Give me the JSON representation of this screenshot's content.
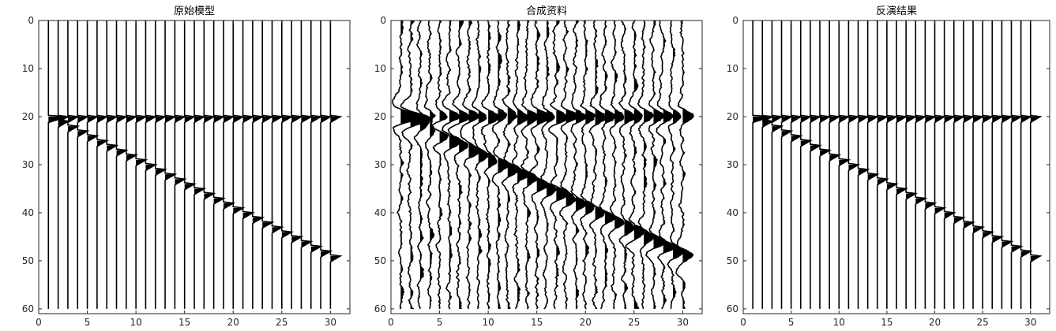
{
  "chart_data": [
    {
      "type": "seismic-wiggle",
      "title": "原始模型",
      "xlim": [
        0,
        32
      ],
      "ylim": [
        0,
        61
      ],
      "xticks": [
        0,
        5,
        10,
        15,
        20,
        25,
        30
      ],
      "yticks": [
        0,
        10,
        20,
        30,
        40,
        50,
        60
      ],
      "trace_positions": [
        1,
        2,
        3,
        4,
        5,
        6,
        7,
        8,
        9,
        10,
        11,
        12,
        13,
        14,
        15,
        16,
        17,
        18,
        19,
        20,
        21,
        22,
        23,
        24,
        25,
        26,
        27,
        28,
        29,
        30
      ],
      "events": [
        {
          "name": "flat",
          "times": [
            20,
            20,
            20,
            20,
            20,
            20,
            20,
            20,
            20,
            20,
            20,
            20,
            20,
            20,
            20,
            20,
            20,
            20,
            20,
            20,
            20,
            20,
            20,
            20,
            20,
            20,
            20,
            20,
            20,
            20
          ]
        },
        {
          "name": "dipping",
          "times": [
            20,
            21,
            22,
            23,
            24,
            25,
            26,
            27,
            28,
            29,
            30,
            31,
            32,
            33,
            34,
            35,
            36,
            37,
            38,
            39,
            40,
            41,
            42,
            43,
            44,
            45,
            46,
            47,
            48,
            49
          ]
        }
      ],
      "noise": 0
    },
    {
      "type": "seismic-wiggle",
      "title": "合成资料",
      "xlim": [
        0,
        32
      ],
      "ylim": [
        0,
        61
      ],
      "xticks": [
        0,
        5,
        10,
        15,
        20,
        25,
        30
      ],
      "yticks": [
        0,
        10,
        20,
        30,
        40,
        50,
        60
      ],
      "trace_positions": [
        1,
        2,
        3,
        4,
        5,
        6,
        7,
        8,
        9,
        10,
        11,
        12,
        13,
        14,
        15,
        16,
        17,
        18,
        19,
        20,
        21,
        22,
        23,
        24,
        25,
        26,
        27,
        28,
        29,
        30
      ],
      "events": [
        {
          "name": "flat",
          "times": [
            20,
            20,
            20,
            20,
            20,
            20,
            20,
            20,
            20,
            20,
            20,
            20,
            20,
            20,
            20,
            20,
            20,
            20,
            20,
            20,
            20,
            20,
            20,
            20,
            20,
            20,
            20,
            20,
            20,
            20
          ]
        },
        {
          "name": "dipping",
          "times": [
            20,
            21,
            22,
            23,
            24,
            25,
            26,
            27,
            28,
            29,
            30,
            31,
            32,
            33,
            34,
            35,
            36,
            37,
            38,
            39,
            40,
            41,
            42,
            43,
            44,
            45,
            46,
            47,
            48,
            49
          ]
        }
      ],
      "noise": 1
    },
    {
      "type": "seismic-wiggle",
      "title": "反演结果",
      "xlim": [
        0,
        32
      ],
      "ylim": [
        0,
        61
      ],
      "xticks": [
        0,
        5,
        10,
        15,
        20,
        25,
        30
      ],
      "yticks": [
        0,
        10,
        20,
        30,
        40,
        50,
        60
      ],
      "trace_positions": [
        1,
        2,
        3,
        4,
        5,
        6,
        7,
        8,
        9,
        10,
        11,
        12,
        13,
        14,
        15,
        16,
        17,
        18,
        19,
        20,
        21,
        22,
        23,
        24,
        25,
        26,
        27,
        28,
        29,
        30
      ],
      "events": [
        {
          "name": "flat",
          "times": [
            20,
            20,
            20,
            20,
            20,
            20,
            20,
            20,
            20,
            20,
            20,
            20,
            20,
            20,
            20,
            20,
            20,
            20,
            20,
            20,
            20,
            20,
            20,
            20,
            20,
            20,
            20,
            20,
            20,
            20
          ]
        },
        {
          "name": "dipping",
          "times": [
            20,
            21,
            22,
            23,
            24,
            25,
            26,
            27,
            28,
            29,
            30,
            31,
            32,
            33,
            34,
            35,
            36,
            37,
            38,
            39,
            40,
            41,
            42,
            43,
            44,
            45,
            46,
            47,
            48,
            49
          ]
        }
      ],
      "noise": 0
    }
  ]
}
